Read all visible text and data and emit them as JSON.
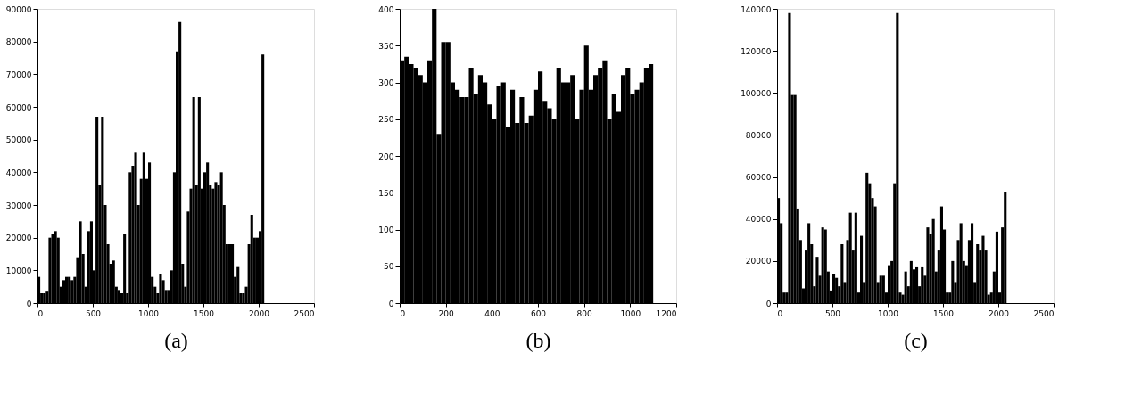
{
  "chart_data": [
    {
      "type": "histogram",
      "xlabel": "(a)",
      "color": "#000000",
      "grid": false,
      "bins": [
        0,
        25,
        50,
        75,
        100,
        125,
        150,
        175,
        200,
        225,
        250,
        275,
        300,
        325,
        350,
        375,
        400,
        425,
        450,
        475,
        500,
        525,
        550,
        575,
        600,
        625,
        650,
        675,
        700,
        725,
        750,
        775,
        800,
        825,
        850,
        875,
        900,
        925,
        950,
        975,
        1000,
        1025,
        1050,
        1075,
        1100,
        1125,
        1150,
        1175,
        1200,
        1225,
        1250,
        1275,
        1300,
        1325,
        1350,
        1375,
        1400,
        1425,
        1450,
        1475,
        1500,
        1525,
        1550,
        1575,
        1600,
        1625,
        1650,
        1675,
        1700,
        1725,
        1750,
        1775,
        1800,
        1825,
        1850,
        1875,
        1900,
        1925,
        1950,
        1975,
        2000,
        2025,
        2050
      ],
      "values": [
        8000,
        3000,
        3000,
        3500,
        20000,
        21000,
        22000,
        20000,
        5000,
        7000,
        8000,
        8000,
        7000,
        8000,
        14000,
        25000,
        15000,
        5000,
        22000,
        25000,
        10000,
        57000,
        36000,
        57000,
        30000,
        18000,
        12000,
        13000,
        5000,
        4000,
        3000,
        21000,
        3000,
        40000,
        42000,
        46000,
        30000,
        38000,
        46000,
        38000,
        43000,
        8000,
        5000,
        3000,
        9000,
        7000,
        4000,
        4000,
        10000,
        40000,
        77000,
        86000,
        12000,
        5000,
        28000,
        35000,
        63000,
        36000,
        63000,
        35000,
        40000,
        43000,
        36000,
        35000,
        37000,
        36000,
        40000,
        30000,
        18000,
        18000,
        18000,
        8000,
        11000,
        3000,
        3000,
        5000,
        18000,
        27000,
        20000,
        20000,
        22000,
        76000
      ],
      "xlim": [
        0,
        2500
      ],
      "xticks": [
        0,
        500,
        1000,
        1500,
        2000,
        2500
      ],
      "ylim": [
        0,
        90000
      ],
      "yticks": [
        0,
        10000,
        20000,
        30000,
        40000,
        50000,
        60000,
        70000,
        80000,
        90000
      ]
    },
    {
      "type": "histogram",
      "xlabel": "(b)",
      "color": "#000000",
      "grid": false,
      "bins": [
        0,
        20,
        40,
        60,
        80,
        100,
        120,
        140,
        160,
        180,
        200,
        220,
        240,
        260,
        280,
        300,
        320,
        340,
        360,
        380,
        400,
        420,
        440,
        460,
        480,
        500,
        520,
        540,
        560,
        580,
        600,
        620,
        640,
        660,
        680,
        700,
        720,
        740,
        760,
        780,
        800,
        820,
        840,
        860,
        880,
        900,
        920,
        940,
        960,
        980,
        1000,
        1020,
        1040,
        1060,
        1080,
        1100
      ],
      "values": [
        330,
        335,
        325,
        320,
        310,
        300,
        330,
        400,
        230,
        355,
        355,
        300,
        290,
        280,
        280,
        320,
        285,
        310,
        300,
        270,
        250,
        295,
        300,
        240,
        290,
        245,
        280,
        245,
        255,
        290,
        315,
        275,
        265,
        250,
        320,
        300,
        300,
        310,
        250,
        290,
        350,
        290,
        310,
        320,
        330,
        250,
        285,
        260,
        310,
        320,
        285,
        290,
        300,
        320,
        325
      ],
      "xlim": [
        0,
        1200
      ],
      "xticks": [
        0,
        200,
        400,
        600,
        800,
        1000,
        1200
      ],
      "ylim": [
        0,
        400
      ],
      "yticks": [
        0,
        50,
        100,
        150,
        200,
        250,
        300,
        350,
        400
      ]
    },
    {
      "type": "histogram",
      "xlabel": "(c)",
      "color": "#000000",
      "grid": false,
      "bins": [
        0,
        25,
        50,
        75,
        100,
        125,
        150,
        175,
        200,
        225,
        250,
        275,
        300,
        325,
        350,
        375,
        400,
        425,
        450,
        475,
        500,
        525,
        550,
        575,
        600,
        625,
        650,
        675,
        700,
        725,
        750,
        775,
        800,
        825,
        850,
        875,
        900,
        925,
        950,
        975,
        1000,
        1025,
        1050,
        1075,
        1100,
        1125,
        1150,
        1175,
        1200,
        1225,
        1250,
        1275,
        1300,
        1325,
        1350,
        1375,
        1400,
        1425,
        1450,
        1475,
        1500,
        1525,
        1550,
        1575,
        1600,
        1625,
        1650,
        1675,
        1700,
        1725,
        1750,
        1775,
        1800,
        1825,
        1850,
        1875,
        1900,
        1925,
        1950,
        1975,
        2000,
        2025,
        2050,
        2075
      ],
      "values": [
        50000,
        38000,
        5000,
        5000,
        138000,
        99000,
        99000,
        45000,
        30000,
        7000,
        25000,
        38000,
        28000,
        8000,
        22000,
        13000,
        36000,
        35000,
        15000,
        6000,
        14000,
        12000,
        8000,
        28000,
        10000,
        30000,
        43000,
        25000,
        43000,
        5000,
        32000,
        10000,
        62000,
        57000,
        50000,
        46000,
        10000,
        13000,
        13000,
        5000,
        18000,
        20000,
        57000,
        138000,
        5000,
        4000,
        15000,
        8000,
        20000,
        16000,
        17000,
        8000,
        17000,
        13000,
        36000,
        33000,
        40000,
        15000,
        25000,
        46000,
        35000,
        5000,
        5000,
        20000,
        10000,
        30000,
        38000,
        20000,
        18000,
        30000,
        38000,
        10000,
        28000,
        25000,
        32000,
        25000,
        4000,
        5000,
        15000,
        34000,
        5000,
        36000,
        53000
      ],
      "xlim": [
        0,
        2500
      ],
      "xticks": [
        0,
        500,
        1000,
        1500,
        2000,
        2500
      ],
      "ylim": [
        0,
        140000
      ],
      "yticks": [
        0,
        20000,
        40000,
        60000,
        80000,
        100000,
        120000,
        140000
      ]
    }
  ]
}
